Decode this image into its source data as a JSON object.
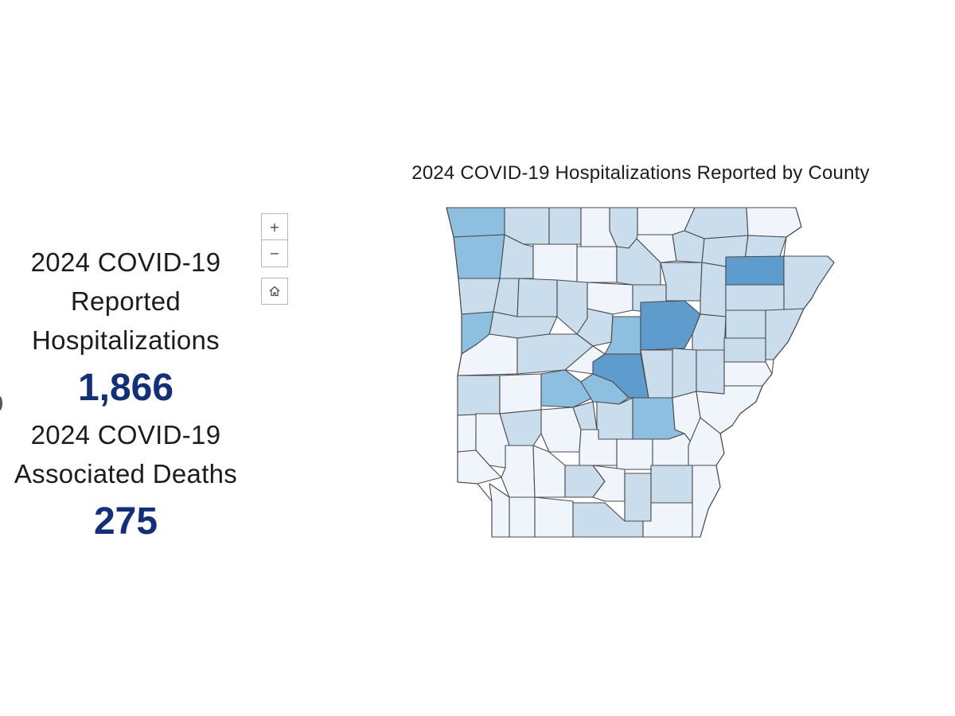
{
  "stats": {
    "hospitalizations": {
      "label_lines": [
        "2024 COVID-19",
        "Reported",
        "Hospitalizations"
      ],
      "value": "1,866"
    },
    "deaths": {
      "label_lines": [
        "2024 COVID-19",
        "Associated Deaths"
      ],
      "value": "275"
    }
  },
  "map": {
    "title": "2024 COVID-19 Hospitalizations Reported by County",
    "controls": {
      "zoom_in": "+",
      "zoom_out": "−",
      "home_icon": "home-icon"
    },
    "colors": {
      "level_1": "#f0f5fc",
      "level_2": "#c9dded",
      "level_3": "#8cbfe0",
      "level_4": "#5e9ccd",
      "border": "#4a4a4a"
    }
  },
  "accent_color": "#112f7a"
}
